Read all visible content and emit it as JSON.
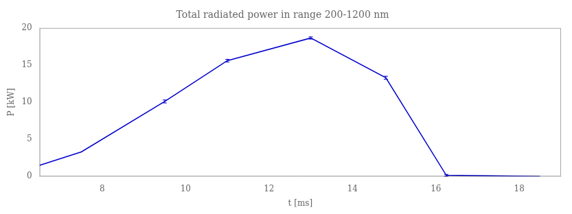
{
  "chart_data": {
    "type": "line",
    "title": "Total radiated power in range 200-1200 nm",
    "xlabel": "t [ms]",
    "ylabel": "P [kW]",
    "x": [
      6.5,
      7.5,
      9.5,
      11.0,
      13.0,
      14.8,
      16.25,
      18.5
    ],
    "values": [
      1.5,
      3.3,
      10.1,
      15.6,
      18.65,
      13.3,
      0.15,
      0.0
    ],
    "yerr": [
      null,
      null,
      0.2,
      0.18,
      0.15,
      0.2,
      0.12,
      null
    ],
    "color": "#0000cd",
    "xlim": [
      6.5,
      19.0
    ],
    "ylim": [
      0,
      20
    ],
    "xticks": [
      8,
      10,
      12,
      14,
      16,
      18
    ],
    "yticks": [
      0,
      5,
      10,
      15,
      20
    ],
    "grid": false
  }
}
